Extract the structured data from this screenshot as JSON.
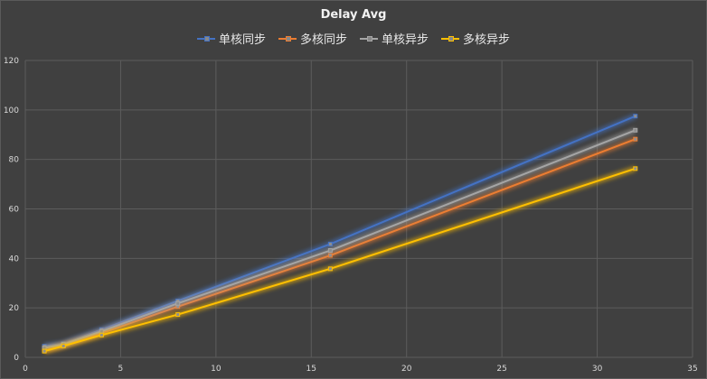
{
  "chart_data": {
    "type": "line",
    "title": "Delay Avg",
    "xlim": [
      0,
      35
    ],
    "ylim": [
      0,
      120
    ],
    "xticks": [
      0,
      5,
      10,
      15,
      20,
      25,
      30,
      35
    ],
    "yticks": [
      0,
      20,
      40,
      60,
      80,
      100,
      120
    ],
    "x": [
      1,
      2,
      4,
      8,
      16,
      32
    ],
    "grid": true,
    "legend_position": "top",
    "series": [
      {
        "name": "单核同步",
        "color": "#4472c4",
        "values": [
          4.5,
          5.5,
          11.2,
          22.8,
          45.8,
          97.5
        ]
      },
      {
        "name": "多核同步",
        "color": "#ed7d31",
        "values": [
          2.8,
          4.8,
          9.8,
          20.5,
          41.2,
          88.2
        ]
      },
      {
        "name": "单核异步",
        "color": "#a5a5a5",
        "values": [
          3.8,
          5.2,
          10.5,
          21.8,
          43.2,
          91.8
        ]
      },
      {
        "name": "多核异步",
        "color": "#ffc000",
        "values": [
          2.5,
          4.6,
          9.0,
          17.3,
          35.8,
          76.3
        ]
      }
    ]
  }
}
